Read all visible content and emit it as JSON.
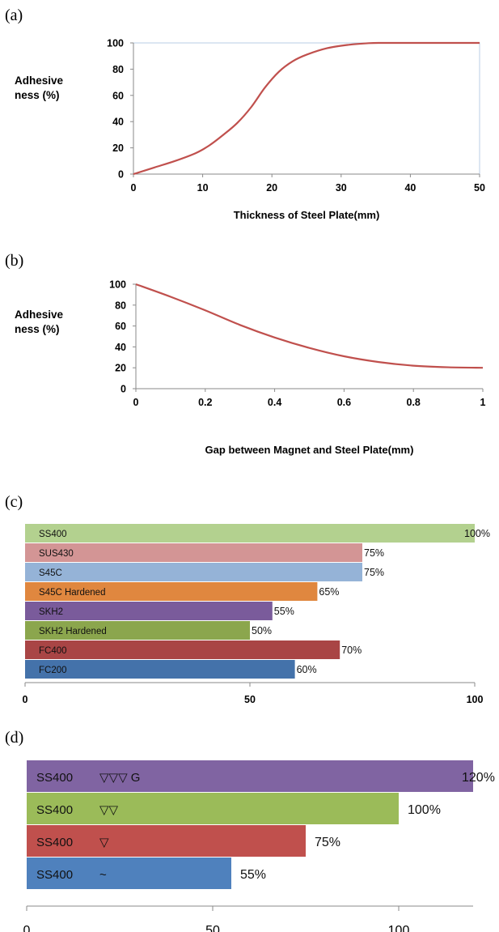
{
  "chart_data": [
    {
      "panel": "(a)",
      "type": "line",
      "ylabel": [
        "Adhesive",
        "ness (%)"
      ],
      "xlabel": "Thickness of Steel Plate(mm)",
      "xlim": [
        0,
        50
      ],
      "ylim": [
        0,
        100
      ],
      "xticks": [
        "0",
        "10",
        "20",
        "30",
        "40",
        "50"
      ],
      "yticks": [
        "0",
        "20",
        "40",
        "60",
        "80",
        "100"
      ],
      "color": "#c0504d",
      "x": [
        0,
        3,
        6,
        9,
        11,
        13,
        15,
        17,
        19,
        21,
        23,
        25,
        28,
        31,
        34,
        36,
        40,
        50
      ],
      "y": [
        0,
        5,
        10,
        16,
        22,
        30,
        39,
        51,
        66,
        78,
        86,
        91,
        96,
        98.5,
        99.8,
        100,
        100,
        100
      ]
    },
    {
      "panel": "(b)",
      "type": "line",
      "ylabel": [
        "Adhesive",
        "ness (%)"
      ],
      "xlabel": "Gap between  Magnet and Steel Plate(mm)",
      "xlim": [
        0,
        1
      ],
      "ylim": [
        0,
        100
      ],
      "xticks": [
        "0",
        "0.2",
        "0.4",
        "0.6",
        "0.8",
        "1"
      ],
      "yticks": [
        "0",
        "20",
        "40",
        "60",
        "80",
        "100"
      ],
      "color": "#c0504d",
      "x": [
        0,
        0.1,
        0.2,
        0.3,
        0.4,
        0.5,
        0.6,
        0.7,
        0.8,
        0.9,
        1.0
      ],
      "y": [
        100,
        88,
        75,
        61,
        49,
        39,
        31,
        25.5,
        22,
        20.5,
        20
      ]
    },
    {
      "panel": "(c)",
      "type": "bar",
      "orientation": "horizontal",
      "xlim": [
        0,
        100
      ],
      "xticks": [
        "0",
        "50",
        "100"
      ],
      "bars": [
        {
          "label": "SS400",
          "value": 100,
          "text": "100%",
          "color": "#b3d18f"
        },
        {
          "label": "SUS430",
          "value": 75,
          "text": "75%",
          "color": "#d39595"
        },
        {
          "label": "S45C",
          "value": 75,
          "text": "75%",
          "color": "#95b3d7"
        },
        {
          "label": "S45C Hardened",
          "value": 65,
          "text": "65%",
          "color": "#e0873f"
        },
        {
          "label": "SKH2",
          "value": 55,
          "text": "55%",
          "color": "#7a5b9b"
        },
        {
          "label": "SKH2 Hardened",
          "value": 50,
          "text": "50%",
          "color": "#8ba64d"
        },
        {
          "label": "FC400",
          "value": 70,
          "text": "70%",
          "color": "#a94545"
        },
        {
          "label": "FC200",
          "value": 60,
          "text": "60%",
          "color": "#4472aa"
        }
      ]
    },
    {
      "panel": "(d)",
      "type": "bar",
      "orientation": "horizontal",
      "xlim": [
        0,
        120
      ],
      "xticks": [
        "0",
        "50",
        "100"
      ],
      "bars": [
        {
          "label": "SS400",
          "mark": "▽▽▽ G",
          "value": 120,
          "text": "120%",
          "color": "#8064a2"
        },
        {
          "label": "SS400",
          "mark": "▽▽",
          "value": 100,
          "text": "100%",
          "color": "#9bbb59"
        },
        {
          "label": "SS400",
          "mark": "▽",
          "value": 75,
          "text": "75%",
          "color": "#c0504d"
        },
        {
          "label": "SS400",
          "mark": "~",
          "value": 55,
          "text": "55%",
          "color": "#4f81bd"
        }
      ]
    }
  ]
}
